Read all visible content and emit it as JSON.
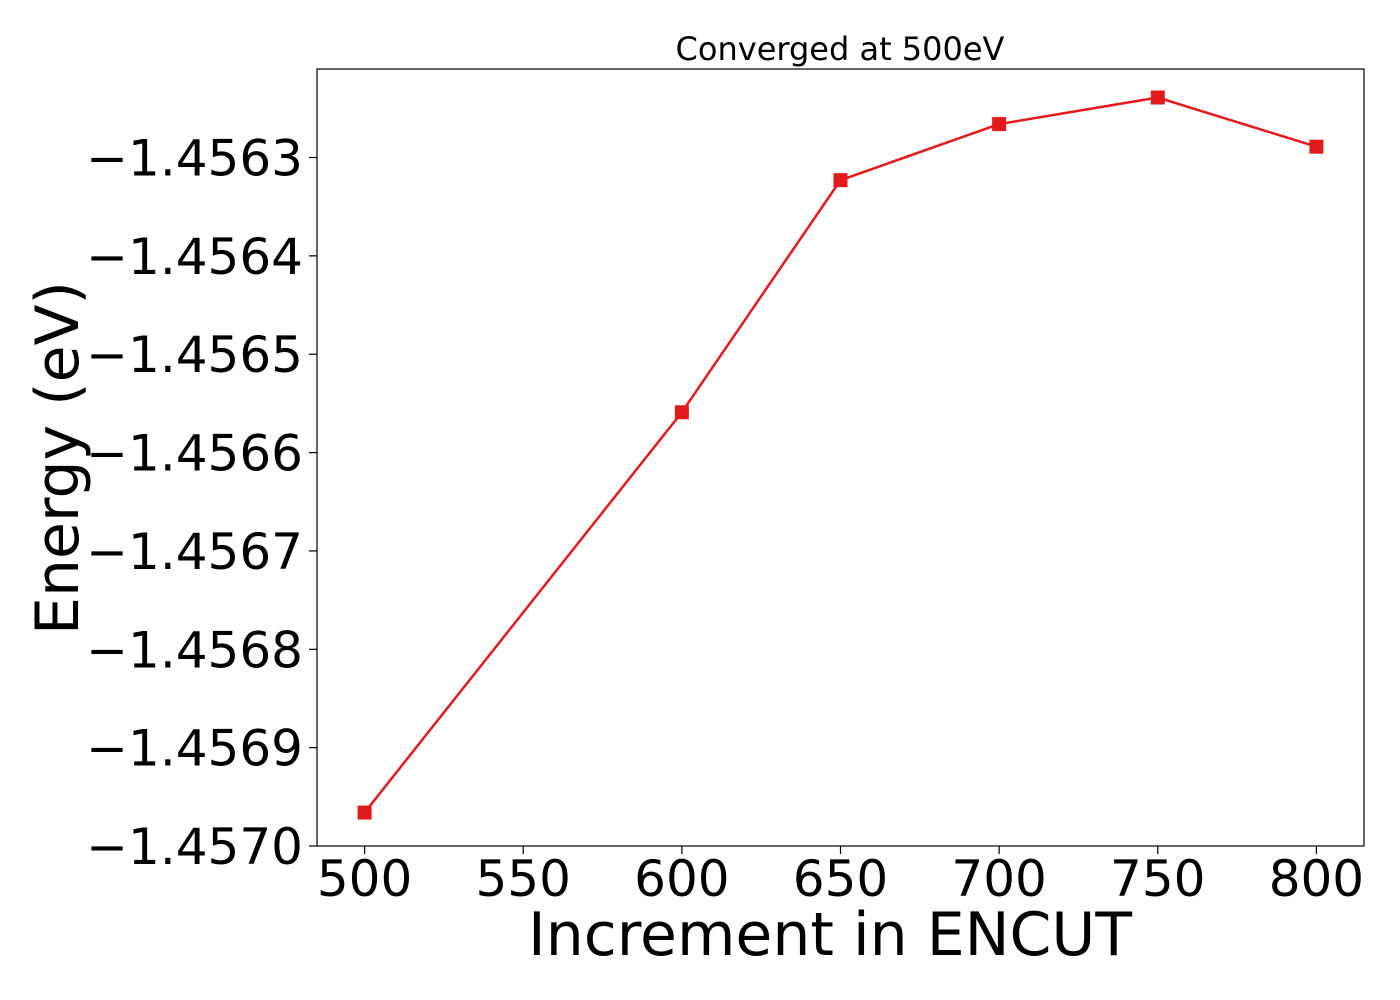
{
  "chart_data": {
    "type": "line",
    "title": "Converged at 500eV",
    "xlabel": "Increment in ENCUT",
    "ylabel": "Energy (eV)",
    "x": [
      500,
      600,
      650,
      700,
      750,
      800
    ],
    "series": [
      {
        "values": [
          -1.456966,
          -1.456559,
          -1.456323,
          -1.456266,
          -1.456239,
          -1.456289
        ],
        "color": "#e31a1c",
        "marker": "square"
      }
    ],
    "xlim": [
      485,
      815
    ],
    "ylim": [
      -1.457,
      -1.45621
    ],
    "xticks": [
      500,
      550,
      600,
      650,
      700,
      750,
      800
    ],
    "xtick_labels": [
      "500",
      "550",
      "600",
      "650",
      "700",
      "750",
      "800"
    ],
    "yticks": [
      -1.457,
      -1.4569,
      -1.4568,
      -1.4567,
      -1.4566,
      -1.4565,
      -1.4564,
      -1.4563
    ],
    "ytick_labels": [
      "−1.4570",
      "−1.4569",
      "−1.4568",
      "−1.4567",
      "−1.4566",
      "−1.4565",
      "−1.4564",
      "−1.4563"
    ],
    "grid": false,
    "legend": "none"
  }
}
